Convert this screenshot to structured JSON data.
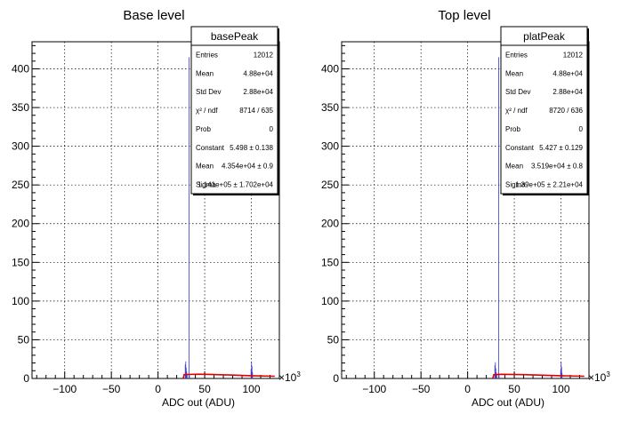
{
  "chart_data": [
    {
      "type": "histogram",
      "title": "Base level",
      "xlabel": "ADC out (ADU)",
      "ylabel": "",
      "x_multiplier": "×10",
      "x_multiplier_exp": "3",
      "xlim": [
        -135,
        130
      ],
      "ylim": [
        0,
        435
      ],
      "xticks": [
        -100,
        -50,
        0,
        50,
        100
      ],
      "xtick_labels": [
        "−100",
        "−50",
        "0",
        "50",
        "100"
      ],
      "yticks": [
        0,
        50,
        100,
        150,
        200,
        250,
        300,
        350,
        400
      ],
      "ytick_labels": [
        "0",
        "50",
        "100",
        "150",
        "200",
        "250",
        "300",
        "350",
        "400"
      ],
      "grid": true,
      "histogram_bins": [
        {
          "x": 29.0,
          "y": 18
        },
        {
          "x": 29.5,
          "y": 22
        },
        {
          "x": 30.0,
          "y": 14
        },
        {
          "x": 30.5,
          "y": 9
        },
        {
          "x": 31.0,
          "y": 6
        },
        {
          "x": 33.0,
          "y": 415
        },
        {
          "x": 33.5,
          "y": 4
        },
        {
          "x": 99.5,
          "y": 12
        },
        {
          "x": 100.0,
          "y": 22
        },
        {
          "x": 100.5,
          "y": 16
        },
        {
          "x": 101.0,
          "y": 8
        }
      ],
      "fit_curve": [
        {
          "x": 27,
          "y": 0
        },
        {
          "x": 28,
          "y": 5
        },
        {
          "x": 43,
          "y": 5.5
        },
        {
          "x": 60,
          "y": 5.1
        },
        {
          "x": 80,
          "y": 4.4
        },
        {
          "x": 100,
          "y": 3.6
        },
        {
          "x": 125,
          "y": 2.9
        }
      ],
      "stats_box": {
        "title": "basePeak",
        "rows": [
          {
            "label": "Entries",
            "value": "12012"
          },
          {
            "label": "Mean",
            "value": "4.88e+04"
          },
          {
            "label": "Std Dev",
            "value": "2.88e+04"
          },
          {
            "label": "χ² / ndf",
            "value": "8714 / 635"
          },
          {
            "label": "Prob",
            "value": "0"
          },
          {
            "label": "Constant",
            "value": "5.498 ± 0.138"
          },
          {
            "label": "Mean",
            "value": "4.354e+04 ± 0.9"
          },
          {
            "label": "Sigma",
            "value": "1.141e+05 ± 1.702e+04"
          }
        ]
      },
      "colors": {
        "histogram": "#3b3bc8",
        "fit": "#e00000"
      }
    },
    {
      "type": "histogram",
      "title": "Top level",
      "xlabel": "ADC out (ADU)",
      "ylabel": "",
      "x_multiplier": "×10",
      "x_multiplier_exp": "3",
      "xlim": [
        -135,
        130
      ],
      "ylim": [
        0,
        435
      ],
      "xticks": [
        -100,
        -50,
        0,
        50,
        100
      ],
      "xtick_labels": [
        "−100",
        "−50",
        "0",
        "50",
        "100"
      ],
      "yticks": [
        0,
        50,
        100,
        150,
        200,
        250,
        300,
        350,
        400
      ],
      "ytick_labels": [
        "0",
        "50",
        "100",
        "150",
        "200",
        "250",
        "300",
        "350",
        "400"
      ],
      "grid": true,
      "histogram_bins": [
        {
          "x": 29.0,
          "y": 17
        },
        {
          "x": 29.5,
          "y": 21
        },
        {
          "x": 30.0,
          "y": 13
        },
        {
          "x": 30.5,
          "y": 8
        },
        {
          "x": 31.0,
          "y": 5
        },
        {
          "x": 33.0,
          "y": 415
        },
        {
          "x": 33.5,
          "y": 4
        },
        {
          "x": 99.5,
          "y": 11
        },
        {
          "x": 100.0,
          "y": 21
        },
        {
          "x": 100.5,
          "y": 15
        },
        {
          "x": 101.0,
          "y": 7
        }
      ],
      "fit_curve": [
        {
          "x": 27,
          "y": 0
        },
        {
          "x": 28,
          "y": 4.8
        },
        {
          "x": 36,
          "y": 5.4
        },
        {
          "x": 60,
          "y": 4.9
        },
        {
          "x": 80,
          "y": 4.3
        },
        {
          "x": 100,
          "y": 3.6
        },
        {
          "x": 125,
          "y": 2.9
        }
      ],
      "stats_box": {
        "title": "platPeak",
        "rows": [
          {
            "label": "Entries",
            "value": "12012"
          },
          {
            "label": "Mean",
            "value": "4.88e+04"
          },
          {
            "label": "Std Dev",
            "value": "2.88e+04"
          },
          {
            "label": "χ² / ndf",
            "value": "8720 / 636"
          },
          {
            "label": "Prob",
            "value": "0"
          },
          {
            "label": "Constant",
            "value": "5.427 ± 0.129"
          },
          {
            "label": "Mean",
            "value": "3.519e+04 ± 0.8"
          },
          {
            "label": "Sigma",
            "value": "1.39e+05 ± 2.21e+04"
          }
        ]
      },
      "colors": {
        "histogram": "#3b3bc8",
        "fit": "#e00000"
      }
    }
  ]
}
